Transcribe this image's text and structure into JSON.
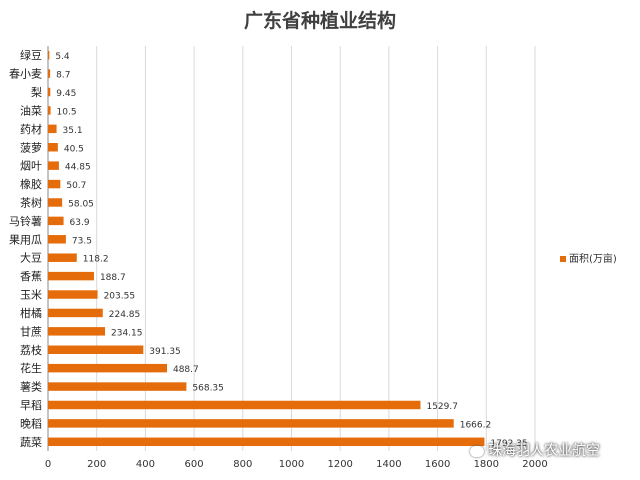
{
  "chart_data": {
    "type": "bar",
    "orientation": "horizontal",
    "title": "广东省种植业结构",
    "categories": [
      "绿豆",
      "春小麦",
      "梨",
      "油菜",
      "药材",
      "菠萝",
      "烟叶",
      "橡胶",
      "茶树",
      "马铃薯",
      "果用瓜",
      "大豆",
      "香蕉",
      "玉米",
      "柑橘",
      "甘蔗",
      "荔枝",
      "花生",
      "薯类",
      "早稻",
      "晚稻",
      "蔬菜"
    ],
    "series": [
      {
        "name": "面积(万亩)",
        "values": [
          5.4,
          8.7,
          9.45,
          10.5,
          35.1,
          40.5,
          44.85,
          50.7,
          58.05,
          63.9,
          73.5,
          118.2,
          188.7,
          203.55,
          224.85,
          234.15,
          391.35,
          488.7,
          568.35,
          1529.7,
          1666.2,
          1792.35
        ],
        "labels": [
          "5.4",
          "8.7",
          "9.45",
          "10.5",
          "35.1",
          "40.5",
          "44.85",
          "50.7",
          "58.05",
          "63.9",
          "73.5",
          "118.2",
          "188.7",
          "203.55",
          "224.85",
          "234.15",
          "391.35",
          "488.7",
          "568.35",
          "1529.7",
          "1666.2",
          "1792.35"
        ]
      }
    ],
    "xlim": [
      0,
      2000
    ],
    "xticks": [
      "0",
      "200",
      "400",
      "600",
      "800",
      "1000",
      "1200",
      "1400",
      "1600",
      "1800",
      "2000"
    ],
    "grid": true,
    "legend_position": "right",
    "bar_color": "#E46C0A"
  },
  "watermark": "珠海羽人农业航空"
}
